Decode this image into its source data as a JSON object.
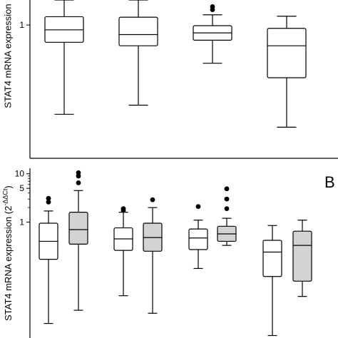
{
  "chart_data": [
    {
      "type": "box",
      "panel": "A (top, cropped)",
      "ylabel": "STAT4 mRNA expression",
      "yscale": "log",
      "y_tick_labels": [
        "1"
      ],
      "ylim": [
        0.015,
        2.2
      ],
      "boxes": [
        {
          "whisker_low": 0.06,
          "q1": 0.58,
          "median": 0.86,
          "q3": 1.3,
          "whisker_high": 2.2,
          "fill": "#ffffff",
          "outliers": []
        },
        {
          "whisker_low": 0.08,
          "q1": 0.52,
          "median": 0.74,
          "q3": 1.28,
          "whisker_high": 2.2,
          "fill": "#ffffff",
          "outliers": []
        },
        {
          "whisker_low": 0.3,
          "q1": 0.62,
          "median": 0.78,
          "q3": 0.98,
          "whisker_high": 1.38,
          "fill": "#ffffff",
          "outliers": [
            1.62,
            1.78
          ]
        },
        {
          "whisker_low": 0.04,
          "q1": 0.19,
          "median": 0.52,
          "q3": 0.9,
          "whisker_high": 1.32,
          "fill": "#ffffff",
          "outliers": []
        }
      ]
    },
    {
      "type": "box",
      "panel": "B",
      "panel_label": "B",
      "ylabel": "STAT4 mRNA expression (2",
      "ylabel_superscript": "-ΔΔCt",
      "ylabel_suffix": ")",
      "yscale": "log",
      "y_tick_labels": [
        "1",
        "5",
        "10"
      ],
      "ylim": [
        0.004,
        13
      ],
      "boxes": [
        {
          "whisker_low": 0.008,
          "q1": 0.17,
          "median": 0.4,
          "q3": 0.95,
          "whisker_high": 1.7,
          "fill": "#ffffff",
          "outliers": [
            2.6,
            3.1
          ]
        },
        {
          "whisker_low": 0.015,
          "q1": 0.35,
          "median": 0.7,
          "q3": 1.6,
          "whisker_high": 4.5,
          "fill": "#d3d3d3",
          "outliers": [
            6.5,
            9.0,
            10.5
          ]
        },
        {
          "whisker_low": 0.03,
          "q1": 0.26,
          "median": 0.45,
          "q3": 0.76,
          "whisker_high": 1.6,
          "fill": "#ffffff",
          "outliers": [
            1.75,
            1.9
          ]
        },
        {
          "whisker_low": 0.013,
          "q1": 0.25,
          "median": 0.48,
          "q3": 0.95,
          "whisker_high": 2.0,
          "fill": "#d3d3d3",
          "outliers": [
            2.9
          ]
        },
        {
          "whisker_low": 0.11,
          "q1": 0.27,
          "median": 0.47,
          "q3": 0.72,
          "whisker_high": 1.1,
          "fill": "#ffffff",
          "outliers": [
            2.1
          ]
        },
        {
          "whisker_low": 0.33,
          "q1": 0.4,
          "median": 0.57,
          "q3": 0.82,
          "whisker_high": 1.2,
          "fill": "#d3d3d3",
          "outliers": [
            1.9,
            3.0,
            4.9
          ]
        },
        {
          "whisker_low": 0.0045,
          "q1": 0.075,
          "median": 0.24,
          "q3": 0.42,
          "whisker_high": 0.85,
          "fill": "#ffffff",
          "outliers": []
        },
        {
          "whisker_low": 0.029,
          "q1": 0.06,
          "median": 0.33,
          "q3": 0.65,
          "whisker_high": 1.1,
          "fill": "#d3d3d3",
          "outliers": []
        }
      ]
    }
  ]
}
